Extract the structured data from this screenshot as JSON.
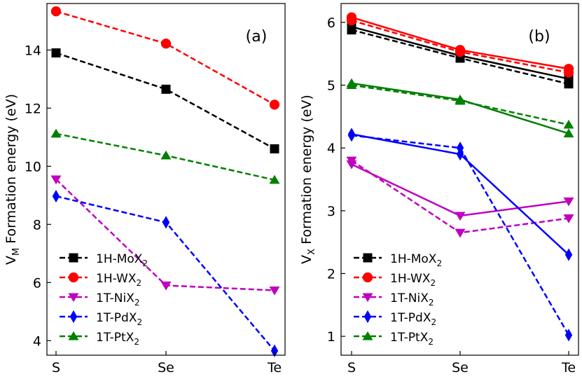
{
  "chart_data": [
    {
      "type": "line",
      "panel_label": "(a)",
      "ylabel_main": "V",
      "ylabel_sub": "M",
      "ylabel_rest": " Formation energy (eV)",
      "categories": [
        "S",
        "Se",
        "Te"
      ],
      "ylim": [
        3.5,
        15.6
      ],
      "yticks": [
        4,
        6,
        8,
        10,
        12,
        14
      ],
      "series": [
        {
          "name": "1H-MoX",
          "sub": "2",
          "color": "#000000",
          "marker": "square",
          "dashed": true,
          "values": [
            13.9,
            12.65,
            10.6
          ]
        },
        {
          "name": "1H-WX",
          "sub": "2",
          "color": "#ff0000",
          "marker": "circle",
          "dashed": true,
          "values": [
            15.33,
            14.22,
            12.12
          ]
        },
        {
          "name": "1T-NiX",
          "sub": "2",
          "color": "#bf00bf",
          "marker": "triangle-down",
          "dashed": true,
          "values": [
            9.55,
            5.9,
            5.73
          ]
        },
        {
          "name": "1T-PdX",
          "sub": "2",
          "color": "#0000ff",
          "marker": "diamond",
          "dashed": true,
          "values": [
            8.97,
            8.07,
            3.65
          ]
        },
        {
          "name": "1T-PtX",
          "sub": "2",
          "color": "#008000",
          "marker": "triangle-up",
          "dashed": true,
          "values": [
            11.12,
            10.37,
            9.53
          ]
        }
      ]
    },
    {
      "type": "line",
      "panel_label": "(b)",
      "ylabel_main": "V",
      "ylabel_sub": "X",
      "ylabel_rest": " Formation energy (eV)",
      "categories": [
        "S",
        "Se",
        "Te"
      ],
      "ylim": [
        0.7,
        6.3
      ],
      "yticks": [
        1,
        2,
        3,
        4,
        5,
        6
      ],
      "series": [
        {
          "name": "1H-MoX",
          "sub": "2",
          "color": "#000000",
          "marker": "square",
          "dashed": true,
          "values": [
            5.88,
            5.43,
            5.02
          ]
        },
        {
          "name": "1H-MoX",
          "sub": "2",
          "color": "#000000",
          "marker": "square",
          "dashed": false,
          "values": [
            5.93,
            5.47,
            5.1
          ]
        },
        {
          "name": "1H-WX",
          "sub": "2",
          "color": "#ff0000",
          "marker": "circle",
          "dashed": true,
          "values": [
            6.03,
            5.53,
            5.2
          ]
        },
        {
          "name": "1H-WX",
          "sub": "2",
          "color": "#ff0000",
          "marker": "circle",
          "dashed": false,
          "values": [
            6.08,
            5.56,
            5.26
          ]
        },
        {
          "name": "1T-NiX",
          "sub": "2",
          "color": "#bf00bf",
          "marker": "triangle-down",
          "dashed": true,
          "values": [
            3.8,
            2.65,
            2.88
          ]
        },
        {
          "name": "1T-NiX",
          "sub": "2",
          "color": "#bf00bf",
          "marker": "triangle-down",
          "dashed": false,
          "values": [
            3.74,
            2.92,
            3.15
          ]
        },
        {
          "name": "1T-PdX",
          "sub": "2",
          "color": "#0000ff",
          "marker": "diamond",
          "dashed": true,
          "values": [
            4.2,
            4.0,
            1.02
          ]
        },
        {
          "name": "1T-PdX",
          "sub": "2",
          "color": "#0000ff",
          "marker": "diamond",
          "dashed": false,
          "values": [
            4.22,
            3.9,
            2.3
          ]
        },
        {
          "name": "1T-PtX",
          "sub": "2",
          "color": "#008000",
          "marker": "triangle-up",
          "dashed": true,
          "values": [
            5.0,
            4.75,
            4.37
          ]
        },
        {
          "name": "1T-PtX",
          "sub": "2",
          "color": "#008000",
          "marker": "triangle-up",
          "dashed": false,
          "values": [
            5.03,
            4.77,
            4.23
          ]
        }
      ]
    }
  ]
}
